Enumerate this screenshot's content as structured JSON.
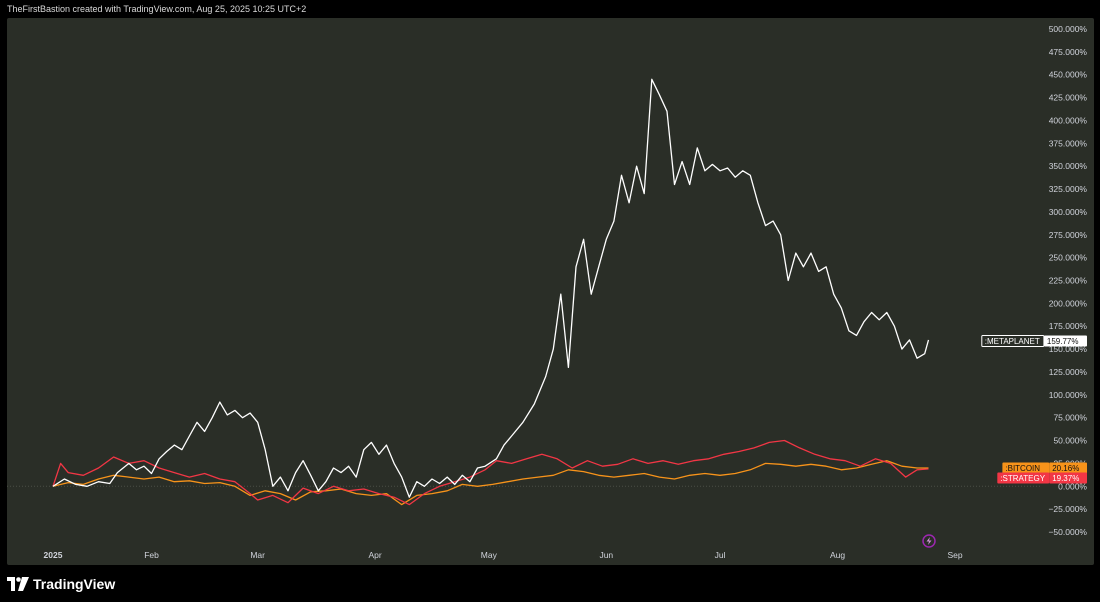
{
  "header": {
    "caption": "TheFirstBastion created with TradingView.com, Aug 25, 2025 10:25 UTC+2"
  },
  "footer": {
    "brand": "TradingView"
  },
  "chart_data": {
    "type": "line",
    "y_unit": "%",
    "ylim": [
      -50,
      500
    ],
    "yticks": [
      -50,
      -25,
      0,
      25,
      50,
      75,
      100,
      125,
      150,
      175,
      200,
      225,
      250,
      275,
      300,
      325,
      350,
      375,
      400,
      425,
      450,
      475,
      500
    ],
    "ytick_labels": [
      "−50.000%",
      "−25.000%",
      "0.000%",
      "25.000%",
      "50.000%",
      "75.000%",
      "100.000%",
      "125.000%",
      "150.000%",
      "175.000%",
      "200.000%",
      "225.000%",
      "250.000%",
      "275.000%",
      "300.000%",
      "325.000%",
      "350.000%",
      "375.000%",
      "400.000%",
      "425.000%",
      "450.000%",
      "475.000%",
      "500.000%"
    ],
    "xticks": [
      {
        "label": "2025",
        "date": "2025-01-01",
        "bold": true
      },
      {
        "label": "Feb",
        "date": "2025-02-01"
      },
      {
        "label": "Mar",
        "date": "2025-03-01"
      },
      {
        "label": "Apr",
        "date": "2025-04-01"
      },
      {
        "label": "May",
        "date": "2025-05-01"
      },
      {
        "label": "Jun",
        "date": "2025-06-01"
      },
      {
        "label": "Jul",
        "date": "2025-07-01"
      },
      {
        "label": "Aug",
        "date": "2025-08-01"
      },
      {
        "label": "Sep",
        "date": "2025-09-01"
      }
    ],
    "xlim": [
      "2024-12-22",
      "2025-09-19"
    ],
    "grid": false,
    "series": [
      {
        "name": ":METAPLANET",
        "color": "#ffffff",
        "last_label": "159.77%",
        "label_bg": "#ffffff",
        "label_fg": "#111111",
        "points": [
          [
            "2025-01-06",
            0
          ],
          [
            "2025-01-09",
            8
          ],
          [
            "2025-01-12",
            2
          ],
          [
            "2025-01-15",
            0
          ],
          [
            "2025-01-18",
            5
          ],
          [
            "2025-01-21",
            3
          ],
          [
            "2025-01-23",
            15
          ],
          [
            "2025-01-26",
            25
          ],
          [
            "2025-01-28",
            18
          ],
          [
            "2025-01-30",
            22
          ],
          [
            "2025-02-01",
            14
          ],
          [
            "2025-02-03",
            30
          ],
          [
            "2025-02-05",
            38
          ],
          [
            "2025-02-07",
            45
          ],
          [
            "2025-02-09",
            40
          ],
          [
            "2025-02-11",
            55
          ],
          [
            "2025-02-13",
            70
          ],
          [
            "2025-02-15",
            60
          ],
          [
            "2025-02-17",
            75
          ],
          [
            "2025-02-19",
            92
          ],
          [
            "2025-02-21",
            78
          ],
          [
            "2025-02-23",
            83
          ],
          [
            "2025-02-25",
            75
          ],
          [
            "2025-02-27",
            80
          ],
          [
            "2025-03-01",
            70
          ],
          [
            "2025-03-03",
            40
          ],
          [
            "2025-03-05",
            0
          ],
          [
            "2025-03-07",
            10
          ],
          [
            "2025-03-09",
            -5
          ],
          [
            "2025-03-11",
            15
          ],
          [
            "2025-03-13",
            28
          ],
          [
            "2025-03-15",
            12
          ],
          [
            "2025-03-17",
            -5
          ],
          [
            "2025-03-19",
            5
          ],
          [
            "2025-03-21",
            20
          ],
          [
            "2025-03-23",
            15
          ],
          [
            "2025-03-25",
            22
          ],
          [
            "2025-03-27",
            10
          ],
          [
            "2025-03-29",
            40
          ],
          [
            "2025-03-31",
            48
          ],
          [
            "2025-04-02",
            35
          ],
          [
            "2025-04-04",
            45
          ],
          [
            "2025-04-06",
            25
          ],
          [
            "2025-04-08",
            10
          ],
          [
            "2025-04-10",
            -12
          ],
          [
            "2025-04-12",
            5
          ],
          [
            "2025-04-14",
            0
          ],
          [
            "2025-04-16",
            8
          ],
          [
            "2025-04-18",
            3
          ],
          [
            "2025-04-20",
            10
          ],
          [
            "2025-04-22",
            2
          ],
          [
            "2025-04-24",
            12
          ],
          [
            "2025-04-26",
            5
          ],
          [
            "2025-04-28",
            20
          ],
          [
            "2025-04-30",
            22
          ],
          [
            "2025-05-03",
            30
          ],
          [
            "2025-05-05",
            45
          ],
          [
            "2025-05-07",
            55
          ],
          [
            "2025-05-10",
            70
          ],
          [
            "2025-05-13",
            90
          ],
          [
            "2025-05-16",
            120
          ],
          [
            "2025-05-18",
            150
          ],
          [
            "2025-05-20",
            210
          ],
          [
            "2025-05-22",
            130
          ],
          [
            "2025-05-24",
            240
          ],
          [
            "2025-05-26",
            270
          ],
          [
            "2025-05-28",
            210
          ],
          [
            "2025-05-30",
            240
          ],
          [
            "2025-06-01",
            270
          ],
          [
            "2025-06-03",
            290
          ],
          [
            "2025-06-05",
            340
          ],
          [
            "2025-06-07",
            310
          ],
          [
            "2025-06-09",
            350
          ],
          [
            "2025-06-11",
            320
          ],
          [
            "2025-06-13",
            445
          ],
          [
            "2025-06-15",
            428
          ],
          [
            "2025-06-17",
            410
          ],
          [
            "2025-06-19",
            330
          ],
          [
            "2025-06-21",
            355
          ],
          [
            "2025-06-23",
            330
          ],
          [
            "2025-06-25",
            370
          ],
          [
            "2025-06-27",
            345
          ],
          [
            "2025-06-29",
            352
          ],
          [
            "2025-07-01",
            345
          ],
          [
            "2025-07-03",
            348
          ],
          [
            "2025-07-05",
            338
          ],
          [
            "2025-07-07",
            345
          ],
          [
            "2025-07-09",
            340
          ],
          [
            "2025-07-11",
            310
          ],
          [
            "2025-07-13",
            285
          ],
          [
            "2025-07-15",
            290
          ],
          [
            "2025-07-17",
            275
          ],
          [
            "2025-07-19",
            225
          ],
          [
            "2025-07-21",
            255
          ],
          [
            "2025-07-23",
            240
          ],
          [
            "2025-07-25",
            255
          ],
          [
            "2025-07-27",
            235
          ],
          [
            "2025-07-29",
            240
          ],
          [
            "2025-07-31",
            210
          ],
          [
            "2025-08-02",
            195
          ],
          [
            "2025-08-04",
            170
          ],
          [
            "2025-08-06",
            165
          ],
          [
            "2025-08-08",
            180
          ],
          [
            "2025-08-10",
            190
          ],
          [
            "2025-08-12",
            182
          ],
          [
            "2025-08-14",
            190
          ],
          [
            "2025-08-16",
            175
          ],
          [
            "2025-08-18",
            150
          ],
          [
            "2025-08-20",
            160
          ],
          [
            "2025-08-22",
            140
          ],
          [
            "2025-08-24",
            145
          ],
          [
            "2025-08-25",
            160
          ]
        ]
      },
      {
        "name": ":BITCOIN",
        "color": "#f7931a",
        "last_label": "20.16%",
        "label_bg": "#f7931a",
        "label_fg": "#111111",
        "points": [
          [
            "2025-01-06",
            0
          ],
          [
            "2025-01-10",
            4
          ],
          [
            "2025-01-14",
            2
          ],
          [
            "2025-01-18",
            8
          ],
          [
            "2025-01-22",
            12
          ],
          [
            "2025-01-26",
            10
          ],
          [
            "2025-01-30",
            8
          ],
          [
            "2025-02-03",
            10
          ],
          [
            "2025-02-07",
            5
          ],
          [
            "2025-02-11",
            6
          ],
          [
            "2025-02-15",
            3
          ],
          [
            "2025-02-19",
            4
          ],
          [
            "2025-02-23",
            0
          ],
          [
            "2025-02-27",
            -10
          ],
          [
            "2025-03-03",
            -5
          ],
          [
            "2025-03-07",
            -8
          ],
          [
            "2025-03-11",
            -15
          ],
          [
            "2025-03-15",
            -6
          ],
          [
            "2025-03-19",
            -5
          ],
          [
            "2025-03-23",
            -3
          ],
          [
            "2025-03-27",
            -8
          ],
          [
            "2025-03-31",
            -10
          ],
          [
            "2025-04-04",
            -8
          ],
          [
            "2025-04-08",
            -20
          ],
          [
            "2025-04-12",
            -10
          ],
          [
            "2025-04-16",
            -8
          ],
          [
            "2025-04-20",
            -5
          ],
          [
            "2025-04-24",
            2
          ],
          [
            "2025-04-28",
            0
          ],
          [
            "2025-05-02",
            2
          ],
          [
            "2025-05-06",
            5
          ],
          [
            "2025-05-10",
            8
          ],
          [
            "2025-05-14",
            10
          ],
          [
            "2025-05-18",
            12
          ],
          [
            "2025-05-22",
            18
          ],
          [
            "2025-05-26",
            16
          ],
          [
            "2025-05-30",
            12
          ],
          [
            "2025-06-03",
            10
          ],
          [
            "2025-06-07",
            12
          ],
          [
            "2025-06-11",
            14
          ],
          [
            "2025-06-15",
            10
          ],
          [
            "2025-06-19",
            8
          ],
          [
            "2025-06-23",
            12
          ],
          [
            "2025-06-27",
            14
          ],
          [
            "2025-07-01",
            12
          ],
          [
            "2025-07-05",
            14
          ],
          [
            "2025-07-09",
            18
          ],
          [
            "2025-07-13",
            25
          ],
          [
            "2025-07-17",
            24
          ],
          [
            "2025-07-21",
            22
          ],
          [
            "2025-07-25",
            24
          ],
          [
            "2025-07-29",
            22
          ],
          [
            "2025-08-02",
            18
          ],
          [
            "2025-08-06",
            20
          ],
          [
            "2025-08-10",
            24
          ],
          [
            "2025-08-14",
            28
          ],
          [
            "2025-08-18",
            22
          ],
          [
            "2025-08-22",
            20
          ],
          [
            "2025-08-25",
            20
          ]
        ]
      },
      {
        "name": ":STRATEGY",
        "color": "#f23645",
        "last_label": "19.37%",
        "label_bg": "#f23645",
        "label_fg": "#ffffff",
        "points": [
          [
            "2025-01-06",
            0
          ],
          [
            "2025-01-08",
            25
          ],
          [
            "2025-01-10",
            15
          ],
          [
            "2025-01-14",
            12
          ],
          [
            "2025-01-18",
            20
          ],
          [
            "2025-01-22",
            32
          ],
          [
            "2025-01-26",
            25
          ],
          [
            "2025-01-30",
            28
          ],
          [
            "2025-02-03",
            20
          ],
          [
            "2025-02-07",
            15
          ],
          [
            "2025-02-11",
            10
          ],
          [
            "2025-02-15",
            14
          ],
          [
            "2025-02-19",
            8
          ],
          [
            "2025-02-23",
            5
          ],
          [
            "2025-02-27",
            -8
          ],
          [
            "2025-03-01",
            -15
          ],
          [
            "2025-03-05",
            -10
          ],
          [
            "2025-03-09",
            -18
          ],
          [
            "2025-03-13",
            -2
          ],
          [
            "2025-03-17",
            -8
          ],
          [
            "2025-03-21",
            0
          ],
          [
            "2025-03-25",
            -5
          ],
          [
            "2025-03-29",
            -3
          ],
          [
            "2025-04-02",
            -8
          ],
          [
            "2025-04-06",
            -12
          ],
          [
            "2025-04-10",
            -20
          ],
          [
            "2025-04-14",
            -8
          ],
          [
            "2025-04-18",
            0
          ],
          [
            "2025-04-22",
            5
          ],
          [
            "2025-04-26",
            10
          ],
          [
            "2025-04-30",
            18
          ],
          [
            "2025-05-03",
            28
          ],
          [
            "2025-05-07",
            25
          ],
          [
            "2025-05-11",
            30
          ],
          [
            "2025-05-15",
            35
          ],
          [
            "2025-05-19",
            30
          ],
          [
            "2025-05-23",
            20
          ],
          [
            "2025-05-27",
            28
          ],
          [
            "2025-05-31",
            22
          ],
          [
            "2025-06-04",
            24
          ],
          [
            "2025-06-08",
            30
          ],
          [
            "2025-06-12",
            25
          ],
          [
            "2025-06-16",
            28
          ],
          [
            "2025-06-20",
            24
          ],
          [
            "2025-06-24",
            28
          ],
          [
            "2025-06-28",
            30
          ],
          [
            "2025-07-02",
            35
          ],
          [
            "2025-07-06",
            38
          ],
          [
            "2025-07-10",
            42
          ],
          [
            "2025-07-14",
            48
          ],
          [
            "2025-07-18",
            50
          ],
          [
            "2025-07-22",
            42
          ],
          [
            "2025-07-26",
            35
          ],
          [
            "2025-07-30",
            30
          ],
          [
            "2025-08-03",
            28
          ],
          [
            "2025-08-07",
            22
          ],
          [
            "2025-08-11",
            30
          ],
          [
            "2025-08-15",
            25
          ],
          [
            "2025-08-19",
            10
          ],
          [
            "2025-08-22",
            18
          ],
          [
            "2025-08-25",
            19
          ]
        ]
      }
    ]
  }
}
